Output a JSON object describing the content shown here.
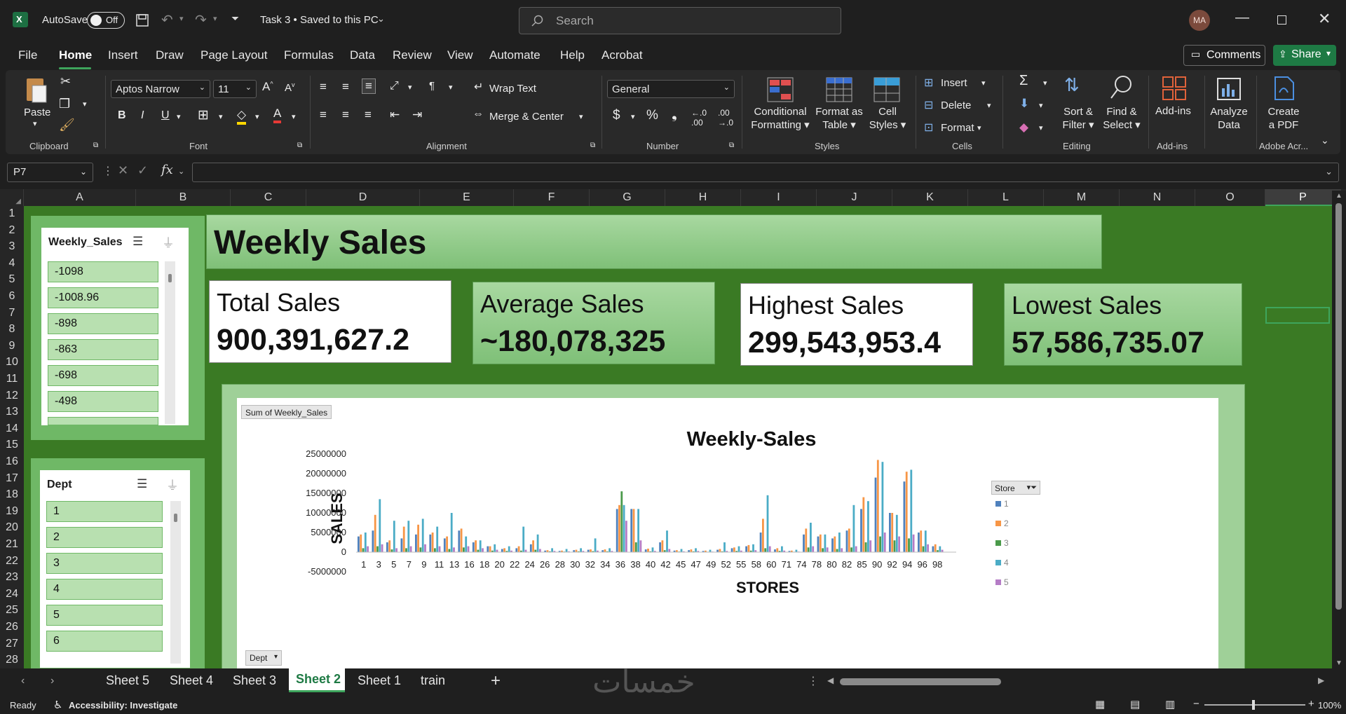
{
  "titlebar": {
    "autosave_label": "AutoSave",
    "autosave_state": "Off",
    "file_title": "Task 3 • Saved to this PC",
    "search_placeholder": "Search",
    "user_initials": "MA"
  },
  "menu": {
    "tabs": [
      "File",
      "Home",
      "Insert",
      "Draw",
      "Page Layout",
      "Formulas",
      "Data",
      "Review",
      "View",
      "Automate",
      "Help",
      "Acrobat"
    ],
    "comments": "Comments",
    "share": "Share"
  },
  "ribbon": {
    "clipboard": {
      "paste": "Paste",
      "label": "Clipboard"
    },
    "font": {
      "family": "Aptos Narrow",
      "size": "11",
      "label": "Font"
    },
    "alignment": {
      "wrap": "Wrap Text",
      "merge": "Merge & Center",
      "label": "Alignment"
    },
    "number": {
      "format": "General",
      "label": "Number"
    },
    "styles": {
      "conditional": [
        "Conditional",
        "Formatting"
      ],
      "format_table": [
        "Format as",
        "Table"
      ],
      "cell_styles": [
        "Cell",
        "Styles"
      ],
      "label": "Styles"
    },
    "cells": {
      "insert": "Insert",
      "delete": "Delete",
      "format": "Format",
      "label": "Cells"
    },
    "editing": {
      "sort": [
        "Sort &",
        "Filter"
      ],
      "find": [
        "Find &",
        "Select"
      ],
      "label": "Editing"
    },
    "addins": {
      "btn": "Add-ins",
      "label": "Add-ins"
    },
    "analyze": [
      "Analyze",
      "Data"
    ],
    "pdf": [
      "Create",
      "a PDF"
    ],
    "adobe_label": "Adobe Acr..."
  },
  "formula": {
    "namebox": "P7",
    "content": ""
  },
  "columns": [
    "A",
    "B",
    "C",
    "D",
    "E",
    "F",
    "G",
    "H",
    "I",
    "J",
    "K",
    "L",
    "M",
    "N",
    "O",
    "P"
  ],
  "rows": [
    "1",
    "2",
    "3",
    "4",
    "5",
    "6",
    "7",
    "8",
    "9",
    "10",
    "11",
    "12",
    "13",
    "14",
    "15",
    "16",
    "17",
    "18",
    "19",
    "20",
    "21",
    "22",
    "23",
    "24",
    "25",
    "26",
    "27",
    "28"
  ],
  "slicers": {
    "weekly": {
      "title": "Weekly_Sales",
      "items": [
        "-1098",
        "-1008.96",
        "-898",
        "-863",
        "-698",
        "-498"
      ]
    },
    "dept": {
      "title": "Dept",
      "items": [
        "1",
        "2",
        "3",
        "4",
        "5",
        "6"
      ]
    }
  },
  "dashboard": {
    "title": "Weekly Sales",
    "kpis": [
      {
        "title": "Total Sales",
        "value": "900,391,627.2"
      },
      {
        "title": "Average Sales",
        "value": "~180,078,325"
      },
      {
        "title": "Highest Sales",
        "value": "299,543,953.4"
      },
      {
        "title": "Lowest Sales",
        "value": "57,586,735.07"
      }
    ],
    "pivot_field_button": "Sum of Weekly_Sales",
    "dept_field_button": "Dept",
    "legend_field": "Store"
  },
  "chart_data": {
    "type": "bar",
    "title": "Weekly-Sales",
    "xlabel": "STORES",
    "ylabel": "SALES",
    "ylim": [
      -5000000,
      25000000
    ],
    "yticks": [
      "25000000",
      "20000000",
      "15000000",
      "10000000",
      "5000000",
      "0",
      "-5000000"
    ],
    "xticks": [
      "1",
      "3",
      "5",
      "7",
      "9",
      "11",
      "13",
      "16",
      "18",
      "20",
      "22",
      "24",
      "26",
      "28",
      "30",
      "32",
      "34",
      "36",
      "38",
      "40",
      "42",
      "45",
      "47",
      "49",
      "52",
      "55",
      "58",
      "60",
      "71",
      "74",
      "78",
      "80",
      "82",
      "85",
      "90",
      "92",
      "94",
      "96",
      "98"
    ],
    "legend": [
      "1",
      "2",
      "3",
      "4",
      "5"
    ],
    "colors": [
      "#4f81bd",
      "#f79646",
      "#4a9a4a",
      "#4bacc6",
      "#b57cc6"
    ],
    "series": [
      {
        "name": "1",
        "values": [
          4000000,
          5500000,
          2500000,
          3500000,
          4500000,
          4500000,
          3500000,
          5500000,
          2500000,
          1500000,
          800000,
          1000000,
          2000000,
          400000,
          300000,
          500000,
          600000,
          500000,
          11000000,
          11000000,
          700000,
          2500000,
          400000,
          500000,
          300000,
          600000,
          1000000,
          1500000,
          5000000,
          700000,
          300000,
          4500000,
          4000000,
          3500000,
          5500000,
          11000000,
          19000000,
          10000000,
          18000000,
          5000000,
          1500000
        ]
      },
      {
        "name": "2",
        "values": [
          4500000,
          9500000,
          3000000,
          6500000,
          7000000,
          5000000,
          4000000,
          6000000,
          3000000,
          1500000,
          1000000,
          1500000,
          3000000,
          500000,
          400000,
          600000,
          700000,
          700000,
          12000000,
          11000000,
          900000,
          3000000,
          500000,
          700000,
          400000,
          800000,
          1200000,
          1800000,
          8500000,
          1000000,
          400000,
          6000000,
          4500000,
          4000000,
          6000000,
          14000000,
          23500000,
          10000000,
          20500000,
          5500000,
          2000000
        ]
      },
      {
        "name": "3",
        "values": [
          1000000,
          1500000,
          700000,
          1000000,
          1200000,
          1000000,
          800000,
          1200000,
          600000,
          400000,
          300000,
          400000,
          600000,
          200000,
          150000,
          200000,
          250000,
          200000,
          15500000,
          2500000,
          200000,
          500000,
          150000,
          200000,
          100000,
          200000,
          300000,
          400000,
          1000000,
          300000,
          100000,
          1200000,
          1000000,
          800000,
          1200000,
          2500000,
          4000000,
          3000000,
          3500000,
          1500000,
          500000
        ]
      },
      {
        "name": "4",
        "values": [
          5000000,
          13500000,
          8000000,
          8000000,
          8500000,
          6500000,
          10000000,
          4000000,
          3000000,
          2000000,
          1500000,
          6500000,
          4500000,
          1000000,
          800000,
          1000000,
          3500000,
          1000000,
          12000000,
          11000000,
          1200000,
          5500000,
          800000,
          1000000,
          600000,
          2500000,
          1500000,
          2000000,
          14500000,
          1500000,
          600000,
          7500000,
          4500000,
          5000000,
          12000000,
          13000000,
          23000000,
          9500000,
          21000000,
          5500000,
          1500000
        ]
      },
      {
        "name": "5",
        "values": [
          1500000,
          2000000,
          1000000,
          1500000,
          2000000,
          1500000,
          1200000,
          1500000,
          1000000,
          600000,
          400000,
          600000,
          800000,
          300000,
          200000,
          300000,
          400000,
          300000,
          8000000,
          3000000,
          300000,
          800000,
          200000,
          300000,
          150000,
          300000,
          400000,
          500000,
          1500000,
          400000,
          150000,
          1500000,
          1200000,
          1000000,
          1500000,
          3000000,
          5000000,
          4000000,
          4500000,
          2000000,
          600000
        ]
      }
    ]
  },
  "sheets": {
    "tabs": [
      "Sheet 5",
      "Sheet 4",
      "Sheet 3",
      "Sheet 2",
      "Sheet 1",
      "train"
    ],
    "active": "Sheet 2"
  },
  "status": {
    "ready": "Ready",
    "accessibility": "Accessibility: Investigate",
    "zoom": "100%"
  },
  "watermark": "خمسات"
}
